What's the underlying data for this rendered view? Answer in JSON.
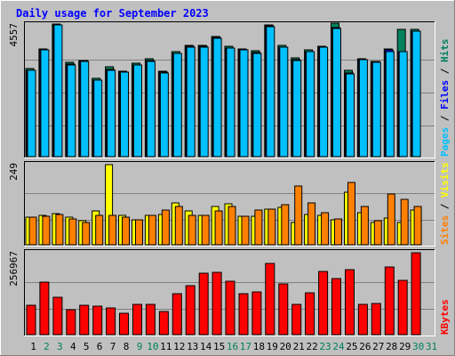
{
  "title": "Daily usage for September 2023",
  "colors": {
    "background": "#c0c0c0",
    "plot": "#c0c0c0",
    "border_dark": "#808080",
    "border_light": "#ffffff",
    "title": "#0000ff",
    "hits": "#00805c",
    "files": "#0000ff",
    "pages": "#00c0ff",
    "visits": "#ffff00",
    "sites": "#ff8000",
    "kbytes": "#ff0000",
    "weekday_label": "#000000",
    "weekend_label": "#00805c"
  },
  "chart_data": [
    {
      "type": "bar",
      "panel": "top",
      "ymax_label": "4557",
      "ymax": 4557,
      "legend": [
        {
          "label": "Pages",
          "color": "#00c0ff"
        },
        {
          "label": "Files",
          "color": "#0000ff"
        },
        {
          "label": "Hits",
          "color": "#00805c"
        }
      ],
      "categories": [
        "1",
        "2",
        "3",
        "4",
        "5",
        "6",
        "7",
        "8",
        "9",
        "10",
        "11",
        "12",
        "13",
        "14",
        "15",
        "16",
        "17",
        "18",
        "19",
        "20",
        "21",
        "22",
        "23",
        "24",
        "25",
        "26",
        "27",
        "28",
        "29",
        "30"
      ],
      "series": [
        {
          "name": "Hits",
          "values": [
            3050,
            3740,
            4590,
            3250,
            3340,
            2700,
            3110,
            2950,
            3240,
            3390,
            2970,
            3630,
            3840,
            3840,
            4160,
            3810,
            3730,
            3650,
            4570,
            3860,
            3410,
            3680,
            3830,
            4620,
            2990,
            3390,
            3290,
            3720,
            4400,
            4400
          ]
        },
        {
          "name": "Files",
          "values": [
            2990,
            3700,
            4550,
            3210,
            3320,
            2660,
            3010,
            2910,
            3180,
            3310,
            2920,
            3580,
            3810,
            3810,
            4120,
            3760,
            3700,
            3590,
            4520,
            3800,
            3360,
            3640,
            3790,
            4470,
            2900,
            3370,
            3290,
            3680,
            3620,
            4340
          ]
        },
        {
          "name": "Pages",
          "values": [
            2990,
            3680,
            4550,
            3180,
            3300,
            2650,
            3000,
            2910,
            3170,
            3300,
            2900,
            3580,
            3780,
            3780,
            4110,
            3760,
            3680,
            3580,
            4510,
            3800,
            3340,
            3620,
            3780,
            4430,
            2860,
            3350,
            3250,
            3630,
            3620,
            4330
          ]
        }
      ]
    },
    {
      "type": "bar",
      "panel": "middle",
      "ymax_label": "249",
      "ymax": 249,
      "legend": [
        {
          "label": "Sites",
          "color": "#ff8000"
        },
        {
          "label": "Visits",
          "color": "#ffff00"
        }
      ],
      "categories": [
        "1",
        "2",
        "3",
        "4",
        "5",
        "6",
        "7",
        "8",
        "9",
        "10",
        "11",
        "12",
        "13",
        "14",
        "15",
        "16",
        "17",
        "18",
        "19",
        "20",
        "21",
        "22",
        "23",
        "24",
        "25",
        "26",
        "27",
        "28",
        "29",
        "30"
      ],
      "series": [
        {
          "name": "Visits",
          "values": [
            85,
            92,
            97,
            85,
            75,
            105,
            249,
            92,
            78,
            92,
            95,
            130,
            105,
            90,
            118,
            128,
            88,
            88,
            110,
            115,
            68,
            93,
            92,
            78,
            163,
            100,
            68,
            83,
            68,
            108
          ]
        },
        {
          "name": "Sites",
          "values": [
            85,
            88,
            95,
            80,
            70,
            90,
            90,
            87,
            78,
            90,
            108,
            118,
            92,
            90,
            105,
            118,
            88,
            108,
            112,
            125,
            183,
            130,
            100,
            80,
            193,
            120,
            75,
            158,
            140,
            118
          ]
        }
      ]
    },
    {
      "type": "bar",
      "panel": "bottom",
      "ymax_label": "256967",
      "ymax": 256967,
      "legend": [
        {
          "label": "KBytes",
          "color": "#ff0000"
        }
      ],
      "categories": [
        "1",
        "2",
        "3",
        "4",
        "5",
        "6",
        "7",
        "8",
        "9",
        "10",
        "11",
        "12",
        "13",
        "14",
        "15",
        "16",
        "17",
        "18",
        "19",
        "20",
        "21",
        "22",
        "23",
        "24",
        "25",
        "26",
        "27",
        "28",
        "29",
        "30"
      ],
      "series": [
        {
          "name": "KBytes",
          "values": [
            92000,
            165000,
            118000,
            78000,
            93000,
            90000,
            84000,
            66000,
            95000,
            95000,
            73000,
            128000,
            153000,
            192000,
            196000,
            168000,
            128000,
            133000,
            223000,
            158000,
            95000,
            131000,
            198000,
            175000,
            204000,
            95000,
            99000,
            212000,
            171000,
            257000
          ]
        }
      ]
    }
  ],
  "x_labels": [
    {
      "label": "1",
      "weekend": false
    },
    {
      "label": "2",
      "weekend": true
    },
    {
      "label": "3",
      "weekend": true
    },
    {
      "label": "4",
      "weekend": false
    },
    {
      "label": "5",
      "weekend": false
    },
    {
      "label": "6",
      "weekend": false
    },
    {
      "label": "7",
      "weekend": false
    },
    {
      "label": "8",
      "weekend": false
    },
    {
      "label": "9",
      "weekend": true
    },
    {
      "label": "10",
      "weekend": true
    },
    {
      "label": "11",
      "weekend": false
    },
    {
      "label": "12",
      "weekend": false
    },
    {
      "label": "13",
      "weekend": false
    },
    {
      "label": "14",
      "weekend": false
    },
    {
      "label": "15",
      "weekend": false
    },
    {
      "label": "16",
      "weekend": true
    },
    {
      "label": "17",
      "weekend": true
    },
    {
      "label": "18",
      "weekend": false
    },
    {
      "label": "19",
      "weekend": false
    },
    {
      "label": "20",
      "weekend": false
    },
    {
      "label": "21",
      "weekend": false
    },
    {
      "label": "22",
      "weekend": false
    },
    {
      "label": "23",
      "weekend": true
    },
    {
      "label": "24",
      "weekend": true
    },
    {
      "label": "25",
      "weekend": false
    },
    {
      "label": "26",
      "weekend": false
    },
    {
      "label": "27",
      "weekend": false
    },
    {
      "label": "28",
      "weekend": false
    },
    {
      "label": "29",
      "weekend": false
    },
    {
      "label": "30",
      "weekend": true
    },
    {
      "label": "31",
      "weekend": true
    }
  ]
}
